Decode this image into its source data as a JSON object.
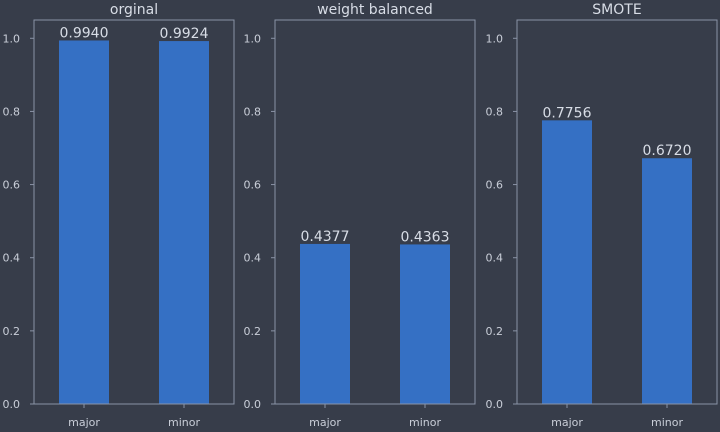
{
  "chart_data": [
    {
      "type": "bar",
      "title": "orginal",
      "categories": [
        "major",
        "minor"
      ],
      "values": [
        0.994,
        0.9924
      ],
      "data_labels": [
        "0.9940",
        "0.9924"
      ],
      "ylim": [
        0,
        1.05
      ],
      "yticks": [
        "0.0",
        "0.2",
        "0.4",
        "0.6",
        "0.8",
        "1.0"
      ],
      "grid": false
    },
    {
      "type": "bar",
      "title": "weight balanced",
      "categories": [
        "major",
        "minor"
      ],
      "values": [
        0.4377,
        0.4363
      ],
      "data_labels": [
        "0.4377",
        "0.4363"
      ],
      "ylim": [
        0,
        1.05
      ],
      "yticks": [
        "0.0",
        "0.2",
        "0.4",
        "0.6",
        "0.8",
        "1.0"
      ],
      "grid": false
    },
    {
      "type": "bar",
      "title": "SMOTE",
      "categories": [
        "major",
        "minor"
      ],
      "values": [
        0.7756,
        0.672
      ],
      "data_labels": [
        "0.7756",
        "0.6720"
      ],
      "ylim": [
        0,
        1.05
      ],
      "yticks": [
        "0.0",
        "0.2",
        "0.4",
        "0.6",
        "0.8",
        "1.0"
      ],
      "grid": false
    }
  ],
  "colors": {
    "background": "#373d4a",
    "bar": "#3570c4",
    "frame": "#8a93a6",
    "text": "#d8dde6"
  }
}
